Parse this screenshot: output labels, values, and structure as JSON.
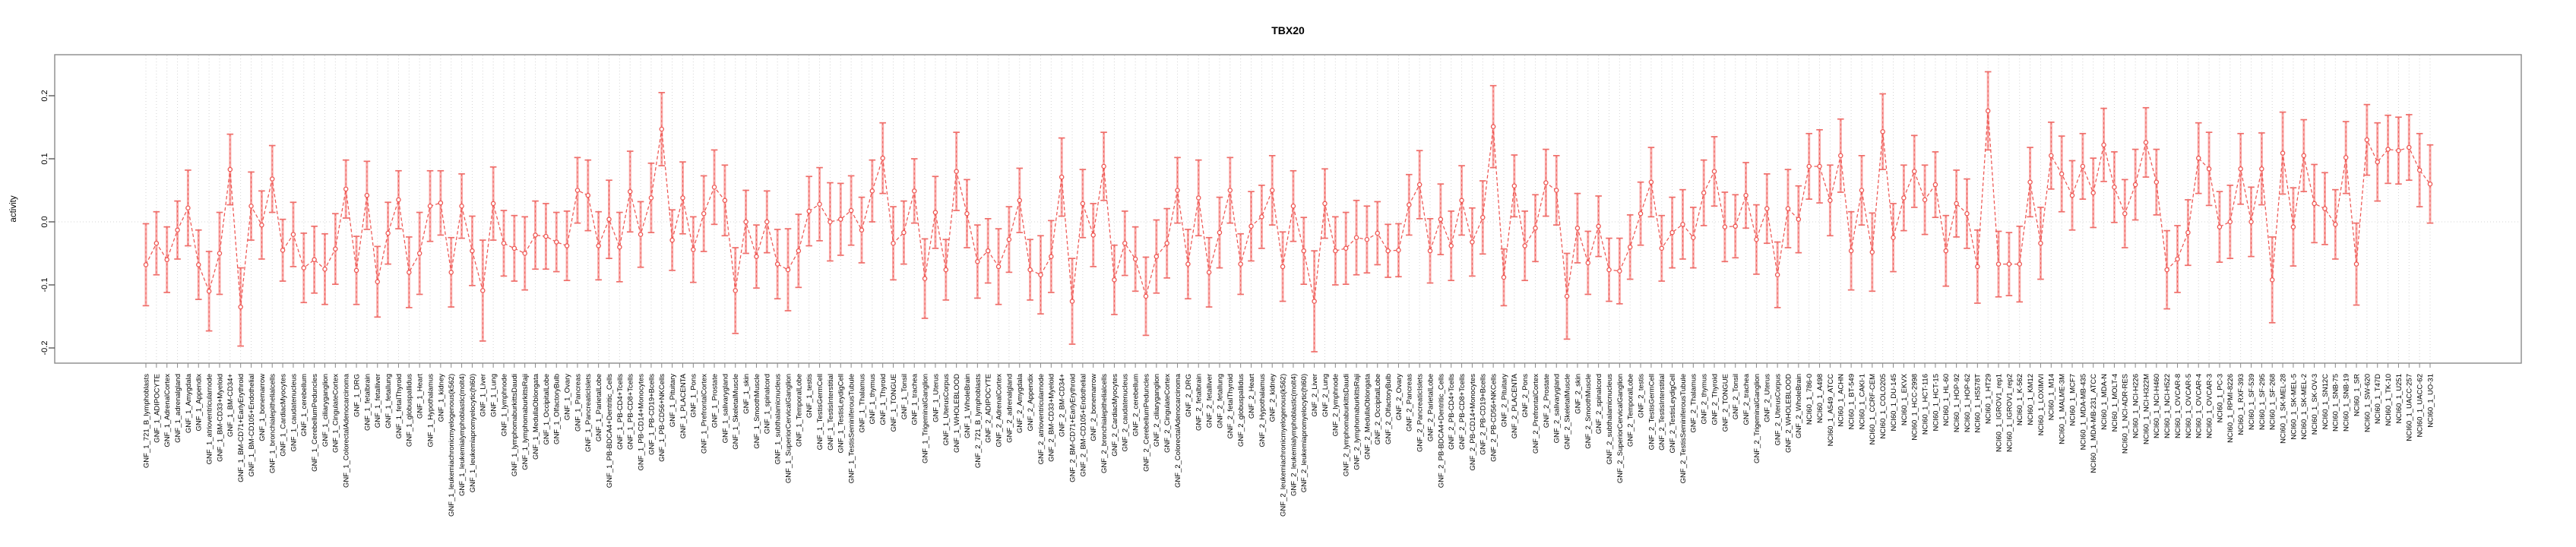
{
  "page": {
    "title": "TBX20"
  },
  "chart_data": {
    "type": "line",
    "subtype": "points-with-error-bars",
    "title": "TBX20",
    "xlabel": "",
    "ylabel": "activity",
    "ylim": [
      -0.224,
      0.265
    ],
    "yticks": [
      0.2,
      0.1,
      0.0,
      -0.1,
      -0.2
    ],
    "ytick_labels": [
      "0.2",
      "0.1",
      "0.0",
      "-0.1",
      "-0.2"
    ],
    "legend": null,
    "grid": {
      "vertical_per_category": true,
      "zero_line": true,
      "style": "dotted",
      "horizontal_other": false
    },
    "colors": {
      "marker": "#ee5753",
      "line": "#ee5753",
      "errorbar": "#f8a8a6",
      "errorbar_cap": "#ef6e6a",
      "grid": "#d4d4d4",
      "axis_box": "#8a8a8a",
      "tick": "#4d4d4d",
      "text": "#000000",
      "background": "#ffffff"
    },
    "categories": [
      "GNF_1_721_B_lymphoblasts",
      "GNF_1_ADIPOCYTE",
      "GNF_1_AdrenalCortex",
      "GNF_1_adrenalgland",
      "GNF_1_Amygdala",
      "GNF_1_Appendix",
      "GNF_1_atrioventricularnode",
      "GNF_1_BM-CD33+Myeloid",
      "GNF_1_BM-CD34+",
      "GNF_1_BM-CD71+EarlyErythroid",
      "GNF_1_BM-CD105+Endothelial",
      "GNF_1_bonemarrow",
      "GNF_1_bronchialepithelialcells",
      "GNF_1_CardiacMyocytes",
      "GNF_1_caudatenucleus",
      "GNF_1_cerebellum",
      "GNF_1_CerebellumPeduncles",
      "GNF_1_ciliaryganglion",
      "GNF_1_CingulateCortex",
      "GNF_1_ColorectalAdenocarcinoma",
      "GNF_1_DRG",
      "GNF_1_fetalbrain",
      "GNF_1_fetalliver",
      "GNF_1_fetallung",
      "GNF_1_fetalThyroid",
      "GNF_1_globuspallidus",
      "GNF_1_Heart",
      "GNF_1_Hypothalamus",
      "GNF_1_kidney",
      "GNF_1_leukemiachronicmyelogenous(k562)",
      "GNF_1_leukemialymphoblastic(molt4)",
      "GNF_1_leukemiapromyelocytic(hl60)",
      "GNF_1_Liver",
      "GNF_1_Lung",
      "GNF_1_lymphnode",
      "GNF_1_lymphomaburkittsDaudi",
      "GNF_1_lymphomaburkittsRaji",
      "GNF_1_MedullaOblongata",
      "GNF_1_OccipitalLobe",
      "GNF_1_OlfactoryBulb",
      "GNF_1_Ovary",
      "GNF_1_Pancreas",
      "GNF_1_PancreaticIslets",
      "GNF_1_ParietalLobe",
      "GNF_1_PB-BDCA4+Dentritic_Cells",
      "GNF_1_PB-CD4+Tcells",
      "GNF_1_PB-CD8+Tcells",
      "GNF_1_PB-CD14+Monocytes",
      "GNF_1_PB-CD19+Bcells",
      "GNF_1_PB-CD56+NKCells",
      "GNF_1_Pituitary",
      "GNF_1_PLACENTA",
      "GNF_1_Pons",
      "GNF_1_PrefrontalCortex",
      "GNF_1_Prostate",
      "GNF_1_salivarygland",
      "GNF_1_SkeletalMuscle",
      "GNF_1_skin",
      "GNF_1_SmoothMuscle",
      "GNF_1_spinalcord",
      "GNF_1_subthalamicnucleus",
      "GNF_1_SuperiorCervicalGanglion",
      "GNF_1_TemporalLobe",
      "GNF_1_testis",
      "GNF_1_TestisGermCell",
      "GNF_1_TestisInterstitial",
      "GNF_1_TestisLeydigCell",
      "GNF_1_TestisSeminiferousTubule",
      "GNF_1_Thalamus",
      "GNF_1_thymus",
      "GNF_1_Thyroid",
      "GNF_1_TONGUE",
      "GNF_1_Tonsil",
      "GNF_1_trachea",
      "GNF_1_TrigeminalGanglion",
      "GNF_1_Uterus",
      "GNF_1_UterusCorpus",
      "GNF_1_WHOLEBLOOD",
      "GNF_1_WholeBrain",
      "GNF_2_721_B_lymphoblasts",
      "GNF_2_ADIPOCYTE",
      "GNF_2_AdrenalCortex",
      "GNF_2_adrenalgland",
      "GNF_2_Amygdala",
      "GNF_2_Appendix",
      "GNF_2_atrioventricularnode",
      "GNF_2_BM-CD33+Myeloid",
      "GNF_2_BM-CD34+",
      "GNF_2_BM-CD71+EarlyErythroid",
      "GNF_2_BM-CD105+Endothelial",
      "GNF_2_bonemarrow",
      "GNF_2_bronchialepithelialcells",
      "GNF_2_CardiacMyocytes",
      "GNF_2_caudatenucleus",
      "GNF_2_cerebellum",
      "GNF_2_CerebellumPeduncles",
      "GNF_2_ciliaryganglion",
      "GNF_2_CingulateCortex",
      "GNF_2_ColorectalAdenocarcinoma",
      "GNF_2_DRG",
      "GNF_2_fetalbrain",
      "GNF_2_fetalliver",
      "GNF_2_fetallung",
      "GNF_2_fetalThyroid",
      "GNF_2_globuspallidus",
      "GNF_2_Heart",
      "GNF_2_Hypothalamus",
      "GNF_2_kidney",
      "GNF_2_leukemiachronicmyelogenous(k562)",
      "GNF_2_leukemialymphoblastic(molt4)",
      "GNF_2_leukemiapromyelocytic(hl60)",
      "GNF_2_Liver",
      "GNF_2_Lung",
      "GNF_2_lymphnode",
      "GNF_2_lymphomaburkittsDaudi",
      "GNF_2_lymphomaburkittsRaji",
      "GNF_2_MedullaOblongata",
      "GNF_2_OccipitalLobe",
      "GNF_2_OlfactoryBulb",
      "GNF_2_Ovary",
      "GNF_2_Pancreas",
      "GNF_2_PancreaticIslets",
      "GNF_2_ParietalLobe",
      "GNF_2_PB-BDCA4+Dentritic_Cells",
      "GNF_2_PB-CD4+Tcells",
      "GNF_2_PB-CD8+Tcells",
      "GNF_2_PB-CD14+Monocytes",
      "GNF_2_PB-CD19+Bcells",
      "GNF_2_PB-CD56+NKCells",
      "GNF_2_Pituitary",
      "GNF_2_PLACENTA",
      "GNF_2_Pons",
      "GNF_2_PrefrontalCortex",
      "GNF_2_Prostate",
      "GNF_2_salivarygland",
      "GNF_2_SkeletalMuscle",
      "GNF_2_skin",
      "GNF_2_SmoothMuscle",
      "GNF_2_spinalcord",
      "GNF_2_subthalamicnucleus",
      "GNF_2_SuperiorCervicalGanglion",
      "GNF_2_TemporalLobe",
      "GNF_2_testis",
      "GNF_2_TestisGermCell",
      "GNF_2_TestisInterstitial",
      "GNF_2_TestisLeydigCell",
      "GNF_2_TestisSeminiferousTubule",
      "GNF_2_Thalamus",
      "GNF_2_thymus",
      "GNF_2_Thyroid",
      "GNF_2_TONGUE",
      "GNF_2_Tonsil",
      "GNF_2_trachea",
      "GNF_2_TrigeminalGanglion",
      "GNF_2_Uterus",
      "GNF_2_UterusCorpus",
      "GNF_2_WHOLEBLOOD",
      "GNF_2_WholeBrain",
      "NCI60_1_786-0",
      "NCI60_1_A498",
      "NCI60_1_A549_ATCC",
      "NCI60_1_ACHN",
      "NCI60_1_BT-549",
      "NCI60_1_CAKI-1",
      "NCI60_1_CCRF-CEM",
      "NCI60_1_COLO205",
      "NCI60_1_DU-145",
      "NCI60_1_EKVX",
      "NCI60_1_HCC-2998",
      "NCI60_1_HCT-116",
      "NCI60_1_HCT-15",
      "NCI60_1_HL-60",
      "NCI60_1_HOP-92",
      "NCI60_1_HOP-62",
      "NCI60_1_HS578T",
      "NCI60_1_HT29",
      "NCI60_1_IGROV1_rep1",
      "NCI60_1_IGROV1_rep2",
      "NCI60_1_K-562",
      "NCI60_1_KM12",
      "NCI60_1_LOXIMVI",
      "NCI60_1_M14",
      "NCI60_1_MALME-3M",
      "NCI60_1_MCF7",
      "NCI60_1_MDA-MB-435",
      "NCI60_1_MDA-MB-231_ATCC",
      "NCI60_1_MDA-N",
      "NCI60_1_MOLT-4",
      "NCI60_1_NCI-ADR-RES",
      "NCI60_1_NCI-H226",
      "NCI60_1_NCI-H322M",
      "NCI60_1_NCI-H460",
      "NCI60_1_NCI-H522",
      "NCI60_1_OVCAR-8",
      "NCI60_1_OVCAR-5",
      "NCI60_1_OVCAR-4",
      "NCI60_1_OVCAR-3",
      "NCI60_1_PC-3",
      "NCI60_1_RPMI-8226",
      "NCI60_1_RXF-393",
      "NCI60_1_SF-539",
      "NCI60_1_SF-295",
      "NCI60_1_SF-268",
      "NCI60_1_SK-MEL-28",
      "NCI60_1_SK-MEL-5",
      "NCI60_1_SK-MEL-2",
      "NCI60_1_SK-OV-3",
      "NCI60_1_SN12C",
      "NCI60_1_SNB-75",
      "NCI60_1_SNB-19",
      "NCI60_1_SR",
      "NCI60_1_SW-620",
      "NCI60_1_T47D",
      "NCI60_1_TK-10",
      "NCI60_1_U251",
      "NCI60_1_UACC-257",
      "NCI60_1_UACC-62",
      "NCI60_1_UO-31"
    ],
    "values": [
      -0.068,
      -0.034,
      -0.06,
      -0.013,
      0.022,
      -0.068,
      -0.11,
      -0.05,
      0.083,
      -0.135,
      0.025,
      -0.005,
      0.068,
      -0.045,
      -0.02,
      -0.073,
      -0.06,
      -0.075,
      -0.043,
      0.052,
      -0.077,
      0.042,
      -0.095,
      -0.018,
      0.035,
      -0.08,
      -0.05,
      0.025,
      0.03,
      -0.08,
      0.025,
      -0.046,
      -0.109,
      0.029,
      -0.034,
      -0.042,
      -0.05,
      -0.021,
      -0.023,
      -0.032,
      -0.038,
      0.05,
      0.042,
      -0.038,
      0.004,
      -0.04,
      0.048,
      -0.02,
      0.038,
      0.147,
      -0.029,
      0.038,
      -0.044,
      0.013,
      0.055,
      0.034,
      -0.109,
      0.0,
      -0.055,
      0.0,
      -0.067,
      -0.076,
      -0.046,
      0.017,
      0.028,
      0.0,
      0.004,
      0.018,
      -0.013,
      0.049,
      0.101,
      -0.034,
      -0.017,
      0.049,
      -0.09,
      0.015,
      -0.076,
      0.08,
      0.013,
      -0.063,
      -0.046,
      -0.071,
      -0.028,
      0.034,
      -0.076,
      -0.084,
      -0.055,
      0.071,
      -0.126,
      0.029,
      -0.021,
      0.088,
      -0.092,
      -0.034,
      -0.059,
      -0.118,
      -0.055,
      -0.034,
      0.05,
      -0.067,
      0.038,
      -0.08,
      -0.017,
      0.05,
      -0.067,
      -0.007,
      0.008,
      0.05,
      -0.071,
      0.025,
      -0.046,
      -0.126,
      0.029,
      -0.046,
      -0.042,
      -0.025,
      -0.028,
      -0.018,
      -0.046,
      -0.045,
      0.027,
      0.059,
      -0.046,
      0.004,
      -0.038,
      0.034,
      -0.032,
      0.007,
      0.151,
      -0.088,
      0.057,
      -0.038,
      -0.01,
      0.062,
      0.05,
      -0.118,
      -0.01,
      -0.065,
      -0.007,
      -0.076,
      -0.078,
      -0.04,
      0.013,
      0.063,
      -0.042,
      -0.017,
      -0.004,
      -0.025,
      0.046,
      0.08,
      -0.008,
      -0.007,
      0.042,
      -0.028,
      0.021,
      -0.084,
      0.021,
      0.004,
      0.088,
      0.088,
      0.034,
      0.105,
      -0.046,
      0.05,
      -0.048,
      0.143,
      -0.025,
      0.038,
      0.08,
      0.035,
      0.059,
      -0.046,
      0.029,
      0.013,
      -0.071,
      0.176,
      -0.067,
      -0.067,
      -0.067,
      0.063,
      -0.034,
      0.105,
      0.076,
      0.042,
      0.088,
      0.046,
      0.122,
      0.055,
      0.013,
      0.059,
      0.126,
      0.063,
      -0.076,
      -0.059,
      -0.017,
      0.101,
      0.084,
      -0.008,
      0.0,
      0.084,
      0.0,
      0.084,
      -0.092,
      0.109,
      -0.008,
      0.105,
      0.029,
      0.021,
      -0.004,
      0.102,
      -0.067,
      0.13,
      0.095,
      0.115,
      0.113,
      0.118,
      0.082,
      0.06
    ],
    "errors": [
      0.065,
      0.05,
      0.052,
      0.046,
      0.06,
      0.055,
      0.063,
      0.065,
      0.056,
      0.062,
      0.054,
      0.054,
      0.053,
      0.049,
      0.051,
      0.055,
      0.053,
      0.056,
      0.056,
      0.046,
      0.054,
      0.054,
      0.056,
      0.049,
      0.046,
      0.056,
      0.065,
      0.056,
      0.051,
      0.055,
      0.051,
      0.055,
      0.08,
      0.058,
      0.052,
      0.052,
      0.058,
      0.054,
      0.052,
      0.047,
      0.055,
      0.052,
      0.056,
      0.054,
      0.062,
      0.055,
      0.064,
      0.052,
      0.055,
      0.058,
      0.048,
      0.057,
      0.052,
      0.06,
      0.059,
      0.056,
      0.068,
      0.05,
      0.05,
      0.049,
      0.055,
      0.065,
      0.058,
      0.055,
      0.058,
      0.062,
      0.057,
      0.055,
      0.052,
      0.049,
      0.056,
      0.058,
      0.05,
      0.051,
      0.063,
      0.057,
      0.048,
      0.062,
      0.054,
      0.058,
      0.051,
      0.06,
      0.052,
      0.051,
      0.048,
      0.062,
      0.057,
      0.062,
      0.068,
      0.054,
      0.05,
      0.054,
      0.055,
      0.051,
      0.051,
      0.062,
      0.058,
      0.055,
      0.052,
      0.055,
      0.06,
      0.055,
      0.056,
      0.052,
      0.048,
      0.055,
      0.05,
      0.055,
      0.055,
      0.056,
      0.053,
      0.08,
      0.055,
      0.054,
      0.057,
      0.059,
      0.053,
      0.05,
      0.042,
      0.042,
      0.048,
      0.054,
      0.051,
      0.056,
      0.055,
      0.055,
      0.054,
      0.058,
      0.065,
      0.045,
      0.049,
      0.055,
      0.053,
      0.053,
      0.055,
      0.068,
      0.055,
      0.05,
      0.048,
      0.05,
      0.052,
      0.051,
      0.05,
      0.055,
      0.052,
      0.056,
      0.055,
      0.048,
      0.052,
      0.055,
      0.055,
      0.05,
      0.052,
      0.055,
      0.055,
      0.052,
      0.062,
      0.053,
      0.052,
      0.058,
      0.056,
      0.058,
      0.062,
      0.055,
      0.062,
      0.06,
      0.054,
      0.052,
      0.057,
      0.055,
      0.052,
      0.056,
      0.053,
      0.055,
      0.058,
      0.062,
      0.052,
      0.05,
      0.06,
      0.055,
      0.057,
      0.053,
      0.06,
      0.055,
      0.052,
      0.055,
      0.058,
      0.056,
      0.054,
      0.056,
      0.055,
      0.052,
      0.062,
      0.053,
      0.052,
      0.056,
      0.058,
      0.056,
      0.058,
      0.056,
      0.055,
      0.057,
      0.068,
      0.065,
      0.062,
      0.057,
      0.062,
      0.057,
      0.055,
      0.057,
      0.065,
      0.056,
      0.062,
      0.054,
      0.053,
      0.052,
      0.058,
      0.062
    ]
  }
}
